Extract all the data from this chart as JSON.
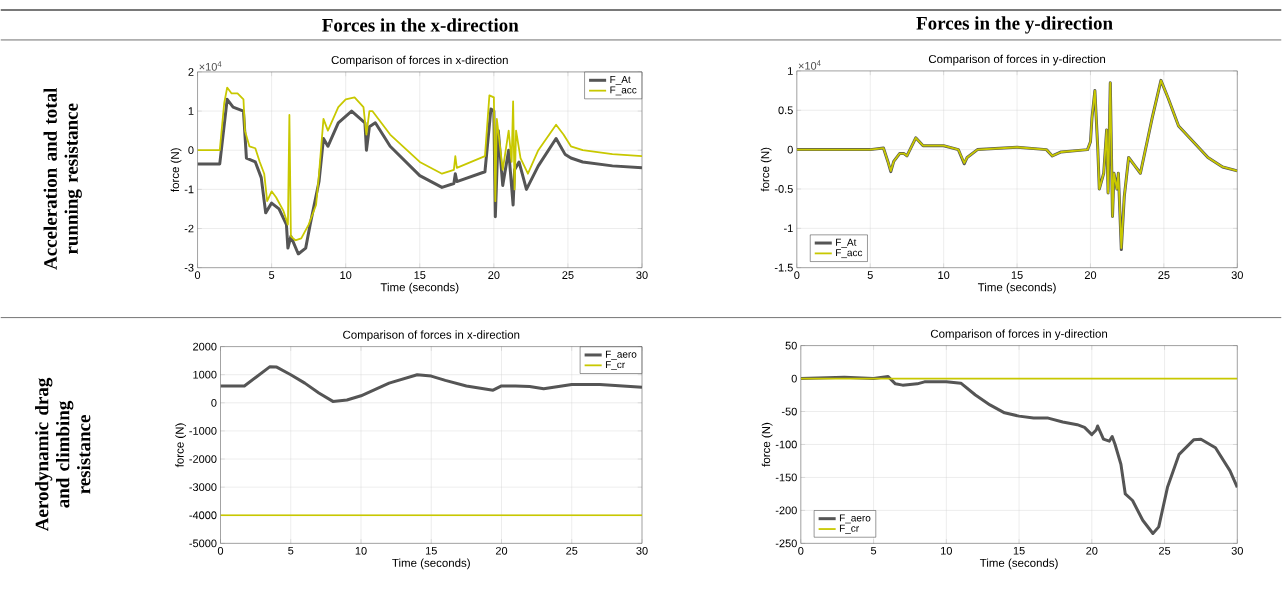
{
  "chart_data": [
    {
      "type": "line",
      "title": "Comparison of forces in x-direction",
      "xlabel": "Time (seconds)",
      "ylabel": "force (N)",
      "xlim": [
        0,
        30
      ],
      "ylim": [
        -3,
        2
      ],
      "xticks": [
        0,
        5,
        10,
        15,
        20,
        25,
        30
      ],
      "yticks": [
        -3,
        -2,
        -1,
        0,
        1,
        2
      ],
      "grid": true,
      "legend": "top right",
      "annotations": [
        "×10$^{4}$",
        "Forces in the x-direction",
        "Acceleration and total running resistance"
      ],
      "series": [
        {
          "name": "F_At",
          "color": "#555555",
          "x": [
            0,
            1.5,
            2.0,
            2.4,
            3.1,
            3.3,
            3.9,
            4.3,
            4.6,
            5.0,
            5.5,
            6.0,
            6.1,
            6.3,
            6.8,
            7.3,
            7.6,
            8.2,
            8.5,
            8.8,
            9.5,
            10.4,
            11.3,
            11.4,
            11.6,
            12,
            13,
            15,
            16.5,
            17.3,
            17.4,
            17.5,
            19.4,
            19.8,
            20.0,
            20.1,
            20.3,
            20.6,
            21.0,
            21.3,
            21.4,
            21.7,
            22.2,
            23.0,
            24.2,
            24.8,
            25.2,
            26,
            28,
            30
          ],
          "values": [
            -0.35,
            -0.35,
            1.3,
            1.1,
            1.0,
            -0.2,
            -0.3,
            -0.7,
            -1.6,
            -1.35,
            -1.5,
            -1.9,
            -2.5,
            -2.2,
            -2.65,
            -2.5,
            -1.9,
            -0.8,
            0.3,
            0.1,
            0.7,
            1.0,
            0.7,
            0.0,
            0.6,
            0.7,
            0.1,
            -0.65,
            -0.95,
            -0.85,
            -0.6,
            -0.8,
            -0.55,
            1.05,
            1.0,
            -1.7,
            0.5,
            -0.9,
            0.0,
            -1.4,
            -0.5,
            -0.3,
            -1.0,
            -0.4,
            0.3,
            -0.1,
            -0.2,
            -0.3,
            -0.4,
            -0.45
          ]
        },
        {
          "name": "F_acc",
          "color": "#c8c800",
          "x": [
            0,
            1.5,
            1.8,
            2.0,
            2.3,
            2.7,
            3.1,
            3.2,
            3.5,
            3.9,
            4.2,
            4.5,
            4.7,
            5.0,
            5.3,
            5.8,
            6.1,
            6.2,
            6.3,
            6.6,
            7.0,
            7.5,
            8.0,
            8.2,
            8.5,
            8.8,
            9.5,
            10,
            10.6,
            11.2,
            11.4,
            11.6,
            11.8,
            13,
            15,
            16.5,
            17.3,
            17.4,
            17.5,
            19.4,
            19.7,
            20.0,
            20.1,
            20.2,
            20.6,
            21.0,
            21.2,
            21.3,
            21.4,
            21.5,
            21.8,
            22.3,
            23.0,
            24.2,
            24.7,
            25.2,
            26,
            28,
            30
          ],
          "values": [
            0,
            0,
            1.2,
            1.6,
            1.45,
            1.45,
            1.3,
            0.5,
            0.1,
            0.05,
            -0.3,
            -0.6,
            -1.3,
            -1.05,
            -1.2,
            -1.55,
            -1.9,
            0.9,
            -2.2,
            -2.3,
            -2.25,
            -1.9,
            -1.4,
            -0.6,
            0.8,
            0.5,
            1.1,
            1.3,
            1.35,
            1.1,
            0.4,
            1.0,
            1.0,
            0.4,
            -0.3,
            -0.6,
            -0.5,
            -0.15,
            -0.45,
            -0.15,
            1.4,
            1.35,
            -1.3,
            0.8,
            -0.5,
            0.5,
            -0.3,
            1.25,
            -1.0,
            0.5,
            -0.2,
            -0.6,
            0.0,
            0.65,
            0.4,
            0.1,
            0.0,
            -0.1,
            -0.15
          ]
        }
      ]
    },
    {
      "type": "line",
      "title": "Comparison of forces in y-direction",
      "xlabel": "Time (seconds)",
      "ylabel": "force (N)",
      "xlim": [
        0,
        30
      ],
      "ylim": [
        -1.5,
        1
      ],
      "xticks": [
        0,
        5,
        10,
        15,
        20,
        25,
        30
      ],
      "yticks": [
        -1.5,
        -1,
        -0.5,
        0,
        0.5,
        1
      ],
      "grid": true,
      "legend": "bottom left",
      "annotations": [
        "×10$^{4}$",
        "Forces in the y-direction"
      ],
      "series": [
        {
          "name": "F_At",
          "color": "#555555",
          "x": [
            0,
            5,
            5.9,
            6.2,
            6.4,
            6.6,
            7.0,
            7.3,
            7.5,
            8.1,
            8.6,
            10,
            11.0,
            11.4,
            11.6,
            12.3,
            15,
            17.0,
            17.4,
            18,
            19.8,
            20.0,
            20.1,
            20.3,
            20.5,
            20.6,
            20.9,
            21.1,
            21.2,
            21.35,
            21.5,
            21.6,
            21.8,
            21.9,
            22.1,
            22.3,
            22.6,
            23.0,
            23.4,
            24.2,
            24.8,
            25.3,
            26,
            27,
            28,
            29,
            30
          ],
          "values": [
            0,
            0,
            0.02,
            -0.15,
            -0.28,
            -0.15,
            -0.05,
            -0.05,
            -0.08,
            0.15,
            0.05,
            0.05,
            0.0,
            -0.18,
            -0.1,
            0.0,
            0.03,
            0.0,
            -0.08,
            -0.03,
            0.0,
            0.1,
            0.4,
            0.75,
            0.0,
            -0.5,
            -0.3,
            0.25,
            -0.55,
            0.85,
            -0.85,
            -0.3,
            -0.5,
            -0.3,
            -1.27,
            -0.6,
            -0.1,
            -0.2,
            -0.3,
            0.4,
            0.88,
            0.65,
            0.3,
            0.1,
            -0.1,
            -0.22,
            -0.27
          ]
        },
        {
          "name": "F_acc",
          "color": "#c8c800",
          "x": [
            0,
            5,
            5.9,
            6.2,
            6.4,
            6.6,
            7.0,
            7.3,
            7.5,
            8.1,
            8.6,
            10,
            11.0,
            11.4,
            11.6,
            12.3,
            15,
            17.0,
            17.4,
            18,
            19.8,
            20.0,
            20.1,
            20.3,
            20.5,
            20.6,
            20.9,
            21.1,
            21.2,
            21.35,
            21.5,
            21.6,
            21.8,
            21.9,
            22.1,
            22.3,
            22.6,
            23.0,
            23.4,
            24.2,
            24.8,
            25.3,
            26,
            27,
            28,
            29,
            30
          ],
          "values": [
            0,
            0,
            0.02,
            -0.15,
            -0.27,
            -0.15,
            -0.05,
            -0.05,
            -0.08,
            0.15,
            0.05,
            0.05,
            0.0,
            -0.17,
            -0.1,
            0.0,
            0.03,
            0.0,
            -0.08,
            -0.03,
            0.0,
            0.1,
            0.4,
            0.75,
            0.0,
            -0.5,
            -0.3,
            0.25,
            -0.55,
            0.85,
            -0.85,
            -0.3,
            -0.5,
            -0.3,
            -1.25,
            -0.6,
            -0.1,
            -0.2,
            -0.3,
            0.4,
            0.88,
            0.65,
            0.3,
            0.1,
            -0.1,
            -0.22,
            -0.27
          ]
        }
      ]
    },
    {
      "type": "line",
      "title": "Comparison of forces in x-direction",
      "xlabel": "Time (seconds)",
      "ylabel": "force (N)",
      "xlim": [
        0,
        30
      ],
      "ylim": [
        -5000,
        2000
      ],
      "xticks": [
        0,
        5,
        10,
        15,
        20,
        25,
        30
      ],
      "yticks": [
        -5000,
        -4000,
        -3000,
        -2000,
        -1000,
        0,
        1000,
        2000
      ],
      "grid": true,
      "legend": "top right",
      "annotations": [
        "Aerodynamic drag and climbing resistance"
      ],
      "series": [
        {
          "name": "F_aero",
          "color": "#555555",
          "x": [
            0,
            1.7,
            2.5,
            3.5,
            4.0,
            5,
            6,
            7,
            8,
            9,
            10,
            12,
            14,
            15,
            16,
            17.5,
            19.4,
            20,
            21,
            22,
            23,
            25,
            27,
            30
          ],
          "values": [
            600,
            600,
            900,
            1280,
            1270,
            1000,
            700,
            350,
            50,
            100,
            250,
            700,
            1000,
            950,
            800,
            600,
            450,
            600,
            600,
            580,
            500,
            650,
            650,
            550
          ]
        },
        {
          "name": "F_cr",
          "color": "#c8c800",
          "x": [
            0,
            30
          ],
          "values": [
            -4000,
            -4000
          ]
        }
      ]
    },
    {
      "type": "line",
      "title": "Comparison of forces in y-direction",
      "xlabel": "Time (seconds)",
      "ylabel": "force (N)",
      "xlim": [
        0,
        30
      ],
      "ylim": [
        -250,
        50
      ],
      "xticks": [
        0,
        5,
        10,
        15,
        20,
        25,
        30
      ],
      "yticks": [
        -250,
        -200,
        -150,
        -100,
        -50,
        0,
        50
      ],
      "grid": true,
      "legend": "bottom left",
      "series": [
        {
          "name": "F_aero",
          "color": "#555555",
          "x": [
            0,
            3,
            5,
            6,
            6.5,
            7,
            8,
            8.5,
            10,
            11,
            12,
            13,
            14,
            15,
            16,
            17,
            18,
            19,
            19.5,
            20,
            20.3,
            20.4,
            20.8,
            21.2,
            21.4,
            21.6,
            22,
            22.3,
            22.8,
            23.5,
            24.2,
            24.6,
            25.2,
            26,
            27,
            27.5,
            28.5,
            29.5,
            30
          ],
          "values": [
            0,
            2,
            0,
            3,
            -8,
            -10,
            -8,
            -5,
            -5,
            -7,
            -25,
            -40,
            -52,
            -57,
            -60,
            -60,
            -66,
            -70,
            -74,
            -85,
            -78,
            -72,
            -92,
            -95,
            -88,
            -100,
            -130,
            -175,
            -185,
            -215,
            -235,
            -225,
            -165,
            -115,
            -93,
            -92,
            -105,
            -140,
            -165
          ]
        },
        {
          "name": "F_cr",
          "color": "#c8c800",
          "x": [
            0,
            30
          ],
          "values": [
            0,
            0
          ]
        }
      ]
    }
  ]
}
